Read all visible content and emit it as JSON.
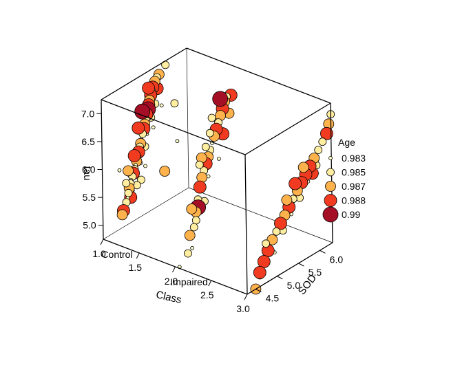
{
  "chart_data": {
    "type": "scatter3d",
    "title": "",
    "x_axis": {
      "label": "Class",
      "range": [
        1.0,
        3.0
      ],
      "ticks": [
        "1.0",
        "1.5",
        "2.0",
        "2.5",
        "3.0"
      ],
      "tick_values": [
        1.0,
        1.5,
        2.0,
        2.5,
        3.0
      ],
      "categories": [
        {
          "label": "Control",
          "value": 1
        },
        {
          "label": "Impaired",
          "value": 2
        }
      ]
    },
    "y_axis": {
      "label": "SOD",
      "range": [
        4.3,
        6.3
      ],
      "ticks": [
        "4.5",
        "5.0",
        "5.5",
        "6.0"
      ],
      "tick_values": [
        4.5,
        5.0,
        5.5,
        6.0
      ]
    },
    "z_axis": {
      "label": "tau",
      "range": [
        4.75,
        7.25
      ],
      "ticks": [
        "5.0",
        "5.5",
        "6.0",
        "6.5",
        "7.0"
      ],
      "tick_values": [
        5.0,
        5.5,
        6.0,
        6.5,
        7.0
      ]
    },
    "legend": {
      "title": "Age",
      "position": "right",
      "entries": [
        {
          "label": "0.983",
          "value": 0.983,
          "color": "#FFFFCC"
        },
        {
          "label": "0.985",
          "value": 0.985,
          "color": "#FFEDA0"
        },
        {
          "label": "0.987",
          "value": 0.987,
          "color": "#FEB24C"
        },
        {
          "label": "0.988",
          "value": 0.988,
          "color": "#F03B20"
        },
        {
          "label": "0.99",
          "value": 0.99,
          "color": "#A50F26"
        }
      ]
    },
    "grid": false,
    "points": [
      [
        1,
        4.75,
        4.98,
        0.987
      ],
      [
        1,
        4.78,
        5.04,
        0.988
      ],
      [
        1,
        4.8,
        5.1,
        0.983
      ],
      [
        1,
        4.82,
        5.0,
        0.985
      ],
      [
        1,
        4.85,
        5.16,
        0.985
      ],
      [
        1,
        4.88,
        5.22,
        0.983
      ],
      [
        1,
        4.9,
        5.3,
        0.985
      ],
      [
        1,
        4.92,
        5.38,
        0.987
      ],
      [
        1,
        4.95,
        5.45,
        0.985
      ],
      [
        1,
        4.97,
        5.5,
        0.983
      ],
      [
        1,
        5.0,
        5.55,
        0.985
      ],
      [
        1,
        5.02,
        5.6,
        0.988
      ],
      [
        1,
        5.05,
        5.66,
        0.985
      ],
      [
        1,
        5.08,
        5.72,
        0.983
      ],
      [
        1,
        5.1,
        5.78,
        0.987
      ],
      [
        1,
        5.12,
        5.85,
        0.985
      ],
      [
        1,
        5.15,
        5.92,
        0.988
      ],
      [
        1,
        5.18,
        6.0,
        0.985
      ],
      [
        1,
        5.2,
        6.05,
        0.987
      ],
      [
        1,
        5.22,
        6.12,
        0.983
      ],
      [
        1,
        5.25,
        6.2,
        0.985
      ],
      [
        1,
        5.28,
        6.28,
        0.988
      ],
      [
        1,
        5.3,
        6.35,
        0.987
      ],
      [
        1,
        5.33,
        6.42,
        0.985
      ],
      [
        1,
        5.35,
        6.5,
        0.988
      ],
      [
        1,
        5.38,
        6.58,
        0.99
      ],
      [
        1,
        5.4,
        6.65,
        0.988
      ],
      [
        1,
        5.42,
        6.72,
        0.987
      ],
      [
        1,
        5.45,
        6.8,
        0.988
      ],
      [
        1,
        5.48,
        6.86,
        0.985
      ],
      [
        1,
        5.5,
        6.92,
        0.988
      ],
      [
        1,
        5.55,
        7.0,
        0.987
      ],
      [
        1,
        5.6,
        7.05,
        0.985
      ],
      [
        1,
        5.65,
        7.08,
        0.987
      ],
      [
        1,
        4.85,
        5.5,
        0.985
      ],
      [
        1,
        5.0,
        5.3,
        0.983
      ],
      [
        1,
        5.1,
        5.35,
        0.985
      ],
      [
        1,
        5.2,
        5.7,
        0.983
      ],
      [
        1,
        5.3,
        5.95,
        0.985
      ],
      [
        1,
        5.35,
        6.15,
        0.983
      ],
      [
        1,
        5.45,
        6.4,
        0.985
      ],
      [
        1,
        5.05,
        5.9,
        0.988
      ],
      [
        1,
        5.15,
        6.35,
        0.988
      ],
      [
        1,
        5.25,
        6.6,
        0.99
      ],
      [
        1,
        5.4,
        6.95,
        0.988
      ],
      [
        1,
        4.95,
        5.2,
        0.988
      ],
      [
        1,
        4.9,
        5.7,
        0.987
      ],
      [
        1,
        5.2,
        5.4,
        0.985
      ],
      [
        1,
        5.3,
        5.6,
        0.983
      ],
      [
        1,
        5.5,
        6.2,
        0.983
      ],
      [
        1,
        5.55,
        6.6,
        0.985
      ],
      [
        1,
        5.6,
        6.85,
        0.988
      ],
      [
        1,
        5.7,
        6.5,
        0.983
      ],
      [
        1,
        5.8,
        7.18,
        0.985
      ],
      [
        1,
        4.7,
        5.8,
        0.983
      ],
      [
        1,
        6.0,
        6.4,
        0.985
      ],
      [
        1,
        6.05,
        5.7,
        0.983
      ],
      [
        1,
        5.75,
        5.3,
        0.987
      ],
      [
        2,
        4.7,
        4.9,
        0.983
      ],
      [
        2,
        4.75,
        5.25,
        0.985
      ],
      [
        2,
        4.8,
        5.5,
        0.987
      ],
      [
        2,
        4.85,
        5.7,
        0.985
      ],
      [
        2,
        4.9,
        5.9,
        0.988
      ],
      [
        2,
        4.95,
        6.05,
        0.987
      ],
      [
        2,
        5.0,
        6.15,
        0.985
      ],
      [
        2,
        5.05,
        6.25,
        0.988
      ],
      [
        2,
        5.1,
        6.35,
        0.987
      ],
      [
        2,
        5.15,
        6.45,
        0.985
      ],
      [
        2,
        5.2,
        6.55,
        0.983
      ],
      [
        2,
        5.25,
        6.65,
        0.987
      ],
      [
        2,
        5.3,
        6.75,
        0.988
      ],
      [
        2,
        5.35,
        6.85,
        0.985
      ],
      [
        2,
        5.4,
        6.95,
        0.987
      ],
      [
        2,
        5.45,
        7.05,
        0.988
      ],
      [
        2,
        5.5,
        7.15,
        0.987
      ],
      [
        2,
        5.55,
        7.22,
        0.985
      ],
      [
        2,
        5.2,
        7.0,
        0.985
      ],
      [
        2,
        4.85,
        5.56,
        0.99
      ],
      [
        2,
        4.65,
        5.15,
        0.987
      ],
      [
        2,
        5.05,
        6.55,
        0.985
      ],
      [
        2,
        5.25,
        6.95,
        0.983
      ],
      [
        2,
        5.35,
        6.2,
        0.983
      ],
      [
        2,
        5.0,
        5.6,
        0.985
      ],
      [
        2,
        4.95,
        6.4,
        0.987
      ],
      [
        2,
        5.15,
        6.75,
        0.985
      ],
      [
        2,
        5.45,
        6.6,
        0.988
      ],
      [
        2,
        4.8,
        5.35,
        0.985
      ],
      [
        2,
        5.1,
        6.0,
        0.983
      ],
      [
        2,
        4.6,
        4.85,
        0.985
      ],
      [
        2,
        4.7,
        5.6,
        0.987
      ],
      [
        2,
        5.6,
        6.9,
        0.987
      ],
      [
        2,
        5.65,
        7.2,
        0.988
      ],
      [
        2,
        4.9,
        6.3,
        0.985
      ],
      [
        2,
        4.4,
        4.7,
        0.983
      ],
      [
        2,
        5.4,
        7.25,
        0.99
      ],
      [
        3,
        4.5,
        4.75,
        0.987
      ],
      [
        3,
        4.6,
        4.95,
        0.985
      ],
      [
        3,
        4.7,
        5.15,
        0.988
      ],
      [
        3,
        4.8,
        5.3,
        0.988
      ],
      [
        3,
        4.9,
        5.45,
        0.987
      ],
      [
        3,
        5.0,
        5.55,
        0.985
      ],
      [
        3,
        5.1,
        5.65,
        0.988
      ],
      [
        3,
        5.2,
        5.75,
        0.987
      ],
      [
        3,
        5.3,
        5.85,
        0.988
      ],
      [
        3,
        5.4,
        5.95,
        0.985
      ],
      [
        3,
        5.5,
        6.05,
        0.987
      ],
      [
        3,
        5.6,
        6.15,
        0.988
      ],
      [
        3,
        5.7,
        6.25,
        0.988
      ],
      [
        3,
        5.8,
        6.35,
        0.988
      ],
      [
        3,
        5.9,
        6.45,
        0.987
      ],
      [
        3,
        6.0,
        6.55,
        0.985
      ],
      [
        3,
        6.1,
        6.65,
        0.985
      ],
      [
        3,
        6.2,
        6.75,
        0.988
      ],
      [
        3,
        4.75,
        5.45,
        0.985
      ],
      [
        3,
        4.95,
        5.2,
        0.983
      ],
      [
        3,
        5.15,
        5.5,
        0.985
      ],
      [
        3,
        5.35,
        5.7,
        0.983
      ],
      [
        3,
        5.55,
        5.9,
        0.985
      ],
      [
        3,
        5.75,
        6.1,
        0.983
      ],
      [
        3,
        5.95,
        6.3,
        0.985
      ],
      [
        3,
        5.45,
        6.2,
        0.988
      ],
      [
        3,
        5.65,
        6.4,
        0.987
      ],
      [
        3,
        5.85,
        6.2,
        0.988
      ],
      [
        3,
        6.25,
        6.9,
        0.987
      ],
      [
        3,
        6.3,
        7.05,
        0.985
      ],
      [
        3,
        4.6,
        5.0,
        0.988
      ],
      [
        3,
        5.25,
        6.0,
        0.987
      ]
    ]
  }
}
